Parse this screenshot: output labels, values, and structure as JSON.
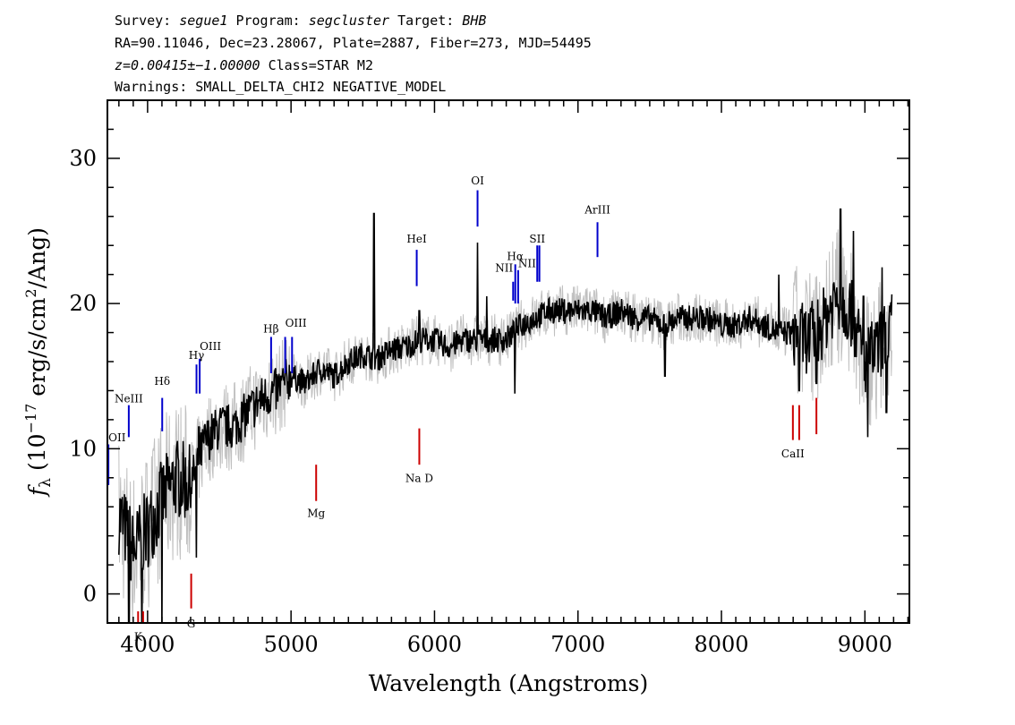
{
  "header": {
    "line1": [
      {
        "t": "Survey: ",
        "i": false
      },
      {
        "t": "segue1",
        "i": true
      },
      {
        "t": " Program: ",
        "i": false
      },
      {
        "t": "segcluster",
        "i": true
      },
      {
        "t": " Target: ",
        "i": false
      },
      {
        "t": "BHB",
        "i": true
      }
    ],
    "line2": "RA=90.11046, Dec=23.28067, Plate=2887, Fiber=273, MJD=54495",
    "line3": [
      {
        "t": "z=0.00415±−1.00000",
        "i": true
      },
      {
        "t": " Class=STAR M2",
        "i": false
      }
    ],
    "line4": "Warnings: SMALL_DELTA_CHI2 NEGATIVE_MODEL"
  },
  "chart_data": {
    "type": "line",
    "xlabel": "Wavelength (Angstroms)",
    "ylabel": "f_λ (10^-17 erg/s/cm^2/Ang)",
    "ylabel_parts": {
      "f": "f",
      "sub": "λ",
      "a": " (10",
      "sup1": "−17",
      "b": " erg/s/cm",
      "sup2": "2",
      "c": "/Ang)"
    },
    "xlim": [
      3720,
      9310
    ],
    "ylim": [
      -2,
      34
    ],
    "xticks": [
      4000,
      5000,
      6000,
      7000,
      8000,
      9000
    ],
    "yticks": [
      0,
      10,
      20,
      30
    ],
    "colors": {
      "spectrum": "#000000",
      "error": "#c0c0c0",
      "emission": "#0000cc",
      "absorption": "#cc0000"
    },
    "spectrum_knots": [
      [
        3800,
        5.5
      ],
      [
        3900,
        3.0
      ],
      [
        4000,
        4.5
      ],
      [
        4100,
        6.5
      ],
      [
        4200,
        8.0
      ],
      [
        4300,
        7.5
      ],
      [
        4400,
        10.5
      ],
      [
        4500,
        11.5
      ],
      [
        4600,
        11.5
      ],
      [
        4700,
        12.5
      ],
      [
        4800,
        13.5
      ],
      [
        4900,
        14.0
      ],
      [
        5000,
        15.0
      ],
      [
        5100,
        14.5
      ],
      [
        5200,
        15.5
      ],
      [
        5300,
        15.0
      ],
      [
        5400,
        16.0
      ],
      [
        5500,
        16.5
      ],
      [
        5600,
        16.2
      ],
      [
        5700,
        16.8
      ],
      [
        5800,
        17.0
      ],
      [
        5900,
        17.5
      ],
      [
        6000,
        17.5
      ],
      [
        6100,
        17.0
      ],
      [
        6200,
        17.5
      ],
      [
        6300,
        17.5
      ],
      [
        6400,
        17.5
      ],
      [
        6500,
        17.5
      ],
      [
        6600,
        18.5
      ],
      [
        6700,
        19.0
      ],
      [
        6800,
        19.5
      ],
      [
        6900,
        19.5
      ],
      [
        7000,
        19.5
      ],
      [
        7100,
        19.5
      ],
      [
        7200,
        19.0
      ],
      [
        7300,
        19.5
      ],
      [
        7400,
        19.0
      ],
      [
        7500,
        19.0
      ],
      [
        7600,
        18.5
      ],
      [
        7700,
        19.0
      ],
      [
        7800,
        19.0
      ],
      [
        7900,
        19.0
      ],
      [
        8000,
        18.5
      ],
      [
        8100,
        18.5
      ],
      [
        8200,
        19.0
      ],
      [
        8300,
        18.5
      ],
      [
        8400,
        18.0
      ],
      [
        8500,
        18.0
      ],
      [
        8600,
        17.5
      ],
      [
        8700,
        18.5
      ],
      [
        8800,
        20.5
      ],
      [
        8900,
        19.5
      ],
      [
        9000,
        16.0
      ],
      [
        9100,
        17.0
      ],
      [
        9200,
        19.0
      ]
    ],
    "spectrum_spikes": [
      [
        5578,
        26.2
      ],
      [
        6300,
        24.2
      ],
      [
        6364,
        20.5
      ],
      [
        4358,
        11.5
      ],
      [
        5893,
        19.5
      ],
      [
        8830,
        26.5
      ],
      [
        8920,
        25.0
      ],
      [
        8990,
        20.5
      ],
      [
        9120,
        22.5
      ],
      [
        8400,
        22.0
      ]
    ],
    "spectrum_dips": [
      [
        3870,
        -3.0
      ],
      [
        3960,
        -3.0
      ],
      [
        4100,
        -3.0
      ],
      [
        4340,
        2.5
      ],
      [
        6560,
        13.8
      ],
      [
        7605,
        15.0
      ],
      [
        8542,
        14.0
      ],
      [
        8662,
        14.5
      ],
      [
        9020,
        10.8
      ],
      [
        9150,
        12.5
      ]
    ],
    "emission_lines": [
      {
        "label": "OII",
        "x": 3727,
        "y0": 7.5,
        "y1": 10.3,
        "ly": 10.5,
        "anchor": "start"
      },
      {
        "label": "NeIII",
        "x": 3869,
        "y0": 10.8,
        "y1": 13.0,
        "ly": 13.2,
        "anchor": "middle"
      },
      {
        "label": "Hδ",
        "x": 4102,
        "y0": 11.2,
        "y1": 13.5,
        "ly": 14.4,
        "anchor": "middle"
      },
      {
        "label": "Hγ",
        "x": 4341,
        "y0": 13.8,
        "y1": 15.8,
        "ly": 16.2,
        "anchor": "middle"
      },
      {
        "label": "OIII",
        "x": 4363,
        "y0": 13.8,
        "y1": 16.2,
        "ly": 16.8,
        "anchor": "start"
      },
      {
        "label": "Hβ",
        "x": 4861,
        "y0": 15.2,
        "y1": 17.7,
        "ly": 18.0,
        "anchor": "middle"
      },
      {
        "label": "OIII",
        "x": 4959,
        "y0": 15.2,
        "y1": 17.7,
        "ly": 18.4,
        "anchor": "start"
      },
      {
        "label": "",
        "x": 5007,
        "y0": 15.2,
        "y1": 17.7,
        "ly": 0,
        "anchor": "start"
      },
      {
        "label": "HeI",
        "x": 5876,
        "y0": 21.2,
        "y1": 23.7,
        "ly": 24.2,
        "anchor": "middle"
      },
      {
        "label": "OI",
        "x": 6300,
        "y0": 25.3,
        "y1": 27.8,
        "ly": 28.2,
        "anchor": "middle"
      },
      {
        "label": "NII",
        "x": 6548,
        "y0": 20.2,
        "y1": 21.5,
        "ly": 22.2,
        "anchor": "end"
      },
      {
        "label": "Hα",
        "x": 6563,
        "y0": 20.0,
        "y1": 22.7,
        "ly": 23.0,
        "anchor": "middle"
      },
      {
        "label": "NII",
        "x": 6583,
        "y0": 20.0,
        "y1": 22.3,
        "ly": 22.5,
        "anchor": "start"
      },
      {
        "label": "SII",
        "x": 6716,
        "y0": 21.5,
        "y1": 24.0,
        "ly": 24.2,
        "anchor": "middle"
      },
      {
        "label": "",
        "x": 6731,
        "y0": 21.5,
        "y1": 24.0,
        "ly": 0,
        "anchor": "middle"
      },
      {
        "label": "ArIII",
        "x": 7136,
        "y0": 23.2,
        "y1": 25.6,
        "ly": 26.2,
        "anchor": "middle"
      }
    ],
    "absorption_lines": [
      {
        "label": "K",
        "x": 3934,
        "y0": -4.0,
        "y1": -1.2,
        "ly": -3.2,
        "anchor": "middle"
      },
      {
        "label": "",
        "x": 3969,
        "y0": -4.0,
        "y1": -1.2,
        "ly": 0,
        "anchor": "middle"
      },
      {
        "label": "G",
        "x": 4304,
        "y0": -1.0,
        "y1": 1.4,
        "ly": -2.3,
        "anchor": "middle"
      },
      {
        "label": "Mg",
        "x": 5175,
        "y0": 6.4,
        "y1": 8.9,
        "ly": 5.3,
        "anchor": "middle"
      },
      {
        "label": "Na D",
        "x": 5894,
        "y0": 8.9,
        "y1": 11.4,
        "ly": 7.7,
        "anchor": "middle"
      },
      {
        "label": "CaII",
        "x": 8498,
        "y0": 10.6,
        "y1": 13.0,
        "ly": 9.4,
        "anchor": "middle"
      },
      {
        "label": "",
        "x": 8542,
        "y0": 10.6,
        "y1": 13.0,
        "ly": 0,
        "anchor": "middle"
      },
      {
        "label": "",
        "x": 8662,
        "y0": 11.0,
        "y1": 13.5,
        "ly": 0,
        "anchor": "middle"
      }
    ]
  }
}
